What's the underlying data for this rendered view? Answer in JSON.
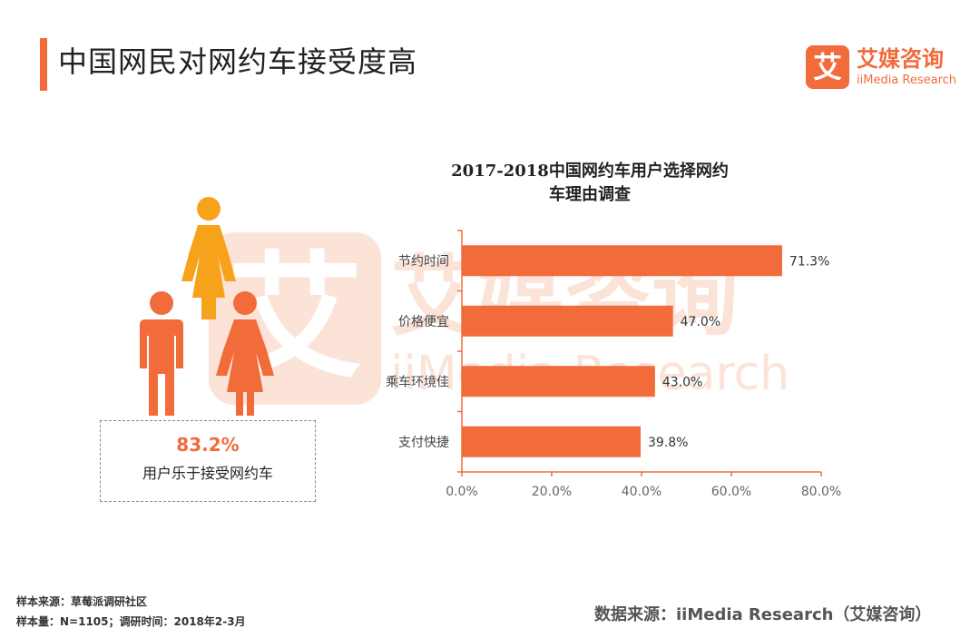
{
  "header": {
    "title": "中国网民对网约车接受度高",
    "accent_color": "#f26b3a"
  },
  "logo": {
    "badge_char": "艾",
    "cn": "艾媒咨询",
    "en": "iiMedia Research"
  },
  "watermark": {
    "badge_char": "艾",
    "cn": "艾媒咨询",
    "en": "iiMedia Research"
  },
  "callout": {
    "value": "83.2%",
    "label": "用户乐于接受网约车"
  },
  "chart_title_line1": "2017-2018中国网约车用户选择网约",
  "chart_title_line2": "车理由调查",
  "chart_data": {
    "type": "bar",
    "orientation": "horizontal",
    "title": "2017-2018中国网约车用户选择网约车理由调查",
    "categories": [
      "节约时间",
      "价格便宜",
      "乘车环境佳",
      "支付快捷"
    ],
    "values": [
      71.3,
      47.0,
      43.0,
      39.8
    ],
    "value_labels": [
      "71.3%",
      "47.0%",
      "43.0%",
      "39.8%"
    ],
    "xlim": [
      0,
      80
    ],
    "xticks": [
      0,
      20,
      40,
      60,
      80
    ],
    "xtick_labels": [
      "0.0%",
      "20.0%",
      "40.0%",
      "60.0%",
      "80.0%"
    ],
    "bar_color": "#f26b3a",
    "grid": false
  },
  "footer": {
    "sample_source": "样本来源：草莓派调研社区",
    "sample_size": "样本量：N=1105；调研时间：2018年2-3月",
    "data_source": "数据来源：iiMedia Research（艾媒咨询）"
  },
  "icons": {
    "woman_top_color": "#f7a21b",
    "man_color": "#f26b3a",
    "woman_right_color": "#f26b3a"
  }
}
